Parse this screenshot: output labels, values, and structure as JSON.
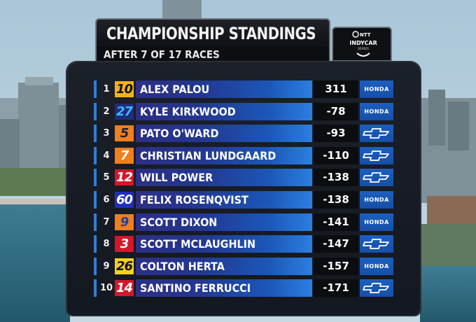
{
  "header": {
    "title": "CHAMPIONSHIP STANDINGS",
    "subtitle": "AFTER 7 OF 17 RACES",
    "logo_top": "NTT",
    "logo_main": "INDYCAR",
    "logo_sub": "SERIES"
  },
  "standings": [
    {
      "pos": "1",
      "car": "10",
      "driver": "ALEX PALOU",
      "points": "311",
      "engine": "HONDA",
      "car_bg": "#f3b21a",
      "car_fg": "#111111"
    },
    {
      "pos": "2",
      "car": "27",
      "driver": "KYLE KIRKWOOD",
      "points": "-78",
      "engine": "HONDA",
      "car_bg": "#1d2f7a",
      "car_fg": "#3fb8ff"
    },
    {
      "pos": "3",
      "car": "5",
      "driver": "PATO O'WARD",
      "points": "-93",
      "engine": "CHEVROLET",
      "car_bg": "#f07f1e",
      "car_fg": "#16223c"
    },
    {
      "pos": "4",
      "car": "7",
      "driver": "CHRISTIAN LUNDGAARD",
      "points": "-110",
      "engine": "CHEVROLET",
      "car_bg": "#f07f1e",
      "car_fg": "#ffffff"
    },
    {
      "pos": "5",
      "car": "12",
      "driver": "WILL POWER",
      "points": "-138",
      "engine": "CHEVROLET",
      "car_bg": "#d3182a",
      "car_fg": "#ffffff"
    },
    {
      "pos": "6",
      "car": "60",
      "driver": "FELIX ROSENQVIST",
      "points": "-138",
      "engine": "HONDA",
      "car_bg": "#1f2fbf",
      "car_fg": "#ffffff"
    },
    {
      "pos": "7",
      "car": "9",
      "driver": "SCOTT DIXON",
      "points": "-141",
      "engine": "HONDA",
      "car_bg": "#f07f1e",
      "car_fg": "#1b3fb0"
    },
    {
      "pos": "8",
      "car": "3",
      "driver": "SCOTT MCLAUGHLIN",
      "points": "-147",
      "engine": "CHEVROLET",
      "car_bg": "#d3182a",
      "car_fg": "#ffffff"
    },
    {
      "pos": "9",
      "car": "26",
      "driver": "COLTON HERTA",
      "points": "-157",
      "engine": "HONDA",
      "car_bg": "#f5d21a",
      "car_fg": "#111111"
    },
    {
      "pos": "10",
      "car": "14",
      "driver": "SANTINO FERRUCCI",
      "points": "-171",
      "engine": "CHEVROLET",
      "car_bg": "#d3182a",
      "car_fg": "#ffffff"
    }
  ]
}
